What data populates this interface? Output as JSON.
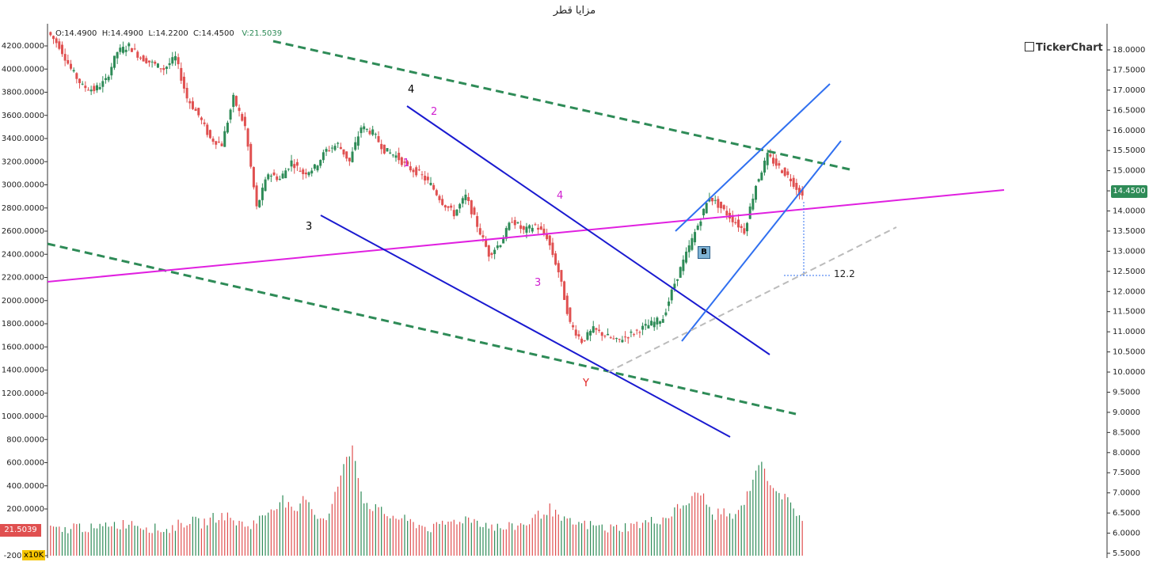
{
  "title": "مزايا قطر",
  "brand": "TickerChart",
  "ohlc": {
    "o": "O:14.4900",
    "h": "H:14.4900",
    "l": "L:14.2200",
    "c": "C:14.4500",
    "v": "V:21.5039"
  },
  "last_price_tag": "14.4500",
  "volume_tag": "21.5039",
  "volume_multiplier": "x10K",
  "measure_label": "12.2",
  "badge": "B",
  "wave_labels": [
    {
      "text": "4",
      "color": "#000000"
    },
    {
      "text": "2",
      "color": "#d020d0"
    },
    {
      "text": "1",
      "color": "#d020d0"
    },
    {
      "text": "3",
      "color": "#000000"
    },
    {
      "text": "4",
      "color": "#d020d0"
    },
    {
      "text": "3",
      "color": "#d020d0"
    },
    {
      "text": "Y",
      "color": "#e02020"
    }
  ],
  "chart_data": {
    "type": "candlestick",
    "left_axis": {
      "ticks": [
        "4200.0000",
        "4000.0000",
        "3800.0000",
        "3600.0000",
        "3400.0000",
        "3200.0000",
        "3000.0000",
        "2800.0000",
        "2600.0000",
        "2400.0000",
        "2200.0000",
        "2000.0000",
        "1800.0000",
        "1600.0000",
        "1400.0000",
        "1200.0000",
        "1000.0000",
        "800.0000",
        "600.0000",
        "400.0000",
        "200.0000",
        "-200.0000"
      ],
      "range": [
        -200,
        4200
      ]
    },
    "right_axis": {
      "ticks": [
        "18.0000",
        "17.5000",
        "17.0000",
        "16.5000",
        "16.0000",
        "15.5000",
        "15.0000",
        "14.5000",
        "14.0000",
        "13.5000",
        "13.0000",
        "12.5000",
        "12.0000",
        "11.5000",
        "11.0000",
        "10.5000",
        "10.0000",
        "9.5000",
        "9.0000",
        "8.5000",
        "8.0000",
        "7.5000",
        "7.0000",
        "6.5000",
        "6.0000",
        "5.5000"
      ],
      "range": [
        5.5,
        18.0
      ]
    },
    "close_series": [
      4320,
      4200,
      4000,
      3850,
      3820,
      3900,
      4150,
      4200,
      4100,
      4050,
      4000,
      4100,
      3750,
      3600,
      3400,
      3350,
      3750,
      3500,
      2800,
      3100,
      3050,
      3200,
      3100,
      3150,
      3300,
      3350,
      3200,
      3500,
      3450,
      3300,
      3250,
      3150,
      3100,
      3000,
      2850,
      2750,
      2900,
      2650,
      2400,
      2500,
      2700,
      2600,
      2650,
      2550,
      2250,
      1800,
      1650,
      1750,
      1700,
      1650,
      1700,
      1750,
      1800,
      1850,
      2150,
      2400,
      2650,
      2900,
      2800,
      2700,
      2600,
      3000,
      3250,
      3150,
      3050,
      2900
    ],
    "volume_values": [
      20,
      18,
      22,
      21,
      19,
      24,
      23,
      25,
      22,
      20,
      19,
      23,
      26,
      24,
      28,
      30,
      25,
      22,
      27,
      35,
      42,
      30,
      45,
      28,
      30,
      60,
      82,
      40,
      35,
      30,
      28,
      25,
      22,
      20,
      24,
      26,
      28,
      25,
      22,
      20,
      22,
      24,
      30,
      35,
      26,
      24,
      23,
      22,
      20,
      21,
      22,
      24,
      26,
      28,
      35,
      40,
      48,
      30,
      32,
      28,
      45,
      70,
      55,
      45,
      35,
      25
    ],
    "overlays": {
      "trendlines": [
        "green dashed upper",
        "green dashed lower",
        "magenta",
        "blue channel down",
        "blue channel up",
        "gray dashed"
      ],
      "last_price": 14.45
    }
  }
}
